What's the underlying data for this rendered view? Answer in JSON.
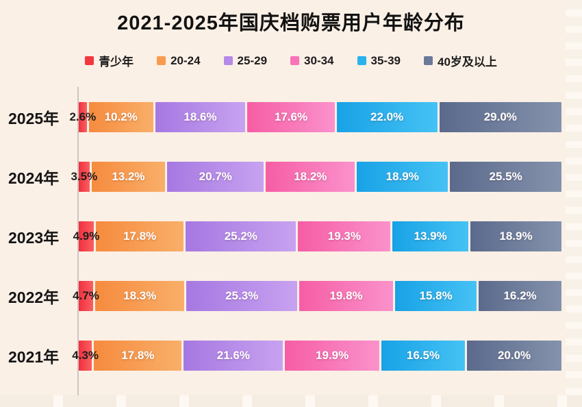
{
  "page": {
    "background_color": "#fbf0e6",
    "edge_strip_color": "#fdf8f1"
  },
  "chart_data": {
    "type": "bar",
    "variant": "horizontal-stacked",
    "title": "2021-2025年国庆档购票用户年龄分布",
    "unit": "%",
    "legend_position": "top",
    "value_labels": true,
    "axis": {
      "baseline": "left-vertical-line",
      "grid": false
    },
    "categories": [
      "2025年",
      "2024年",
      "2023年",
      "2022年",
      "2021年"
    ],
    "series": [
      {
        "name": "青少年",
        "legend_color": "#f2383f",
        "color_start": "#f0303e",
        "color_end": "#fb5f63",
        "label_style": "dark-overflow",
        "values": [
          2.6,
          3.5,
          4.9,
          4.7,
          4.3
        ]
      },
      {
        "name": "20-24",
        "legend_color": "#f89b50",
        "color_start": "#f68b3e",
        "color_end": "#f9af69",
        "values": [
          10.2,
          13.2,
          17.8,
          18.3,
          17.8
        ]
      },
      {
        "name": "25-29",
        "legend_color": "#b58ae8",
        "color_start": "#a678e2",
        "color_end": "#c7a2f0",
        "values": [
          18.6,
          20.7,
          25.2,
          25.3,
          21.6
        ]
      },
      {
        "name": "30-34",
        "legend_color": "#f973b9",
        "color_start": "#f65da4",
        "color_end": "#fa92cc",
        "values": [
          17.6,
          18.2,
          19.3,
          19.8,
          19.9
        ]
      },
      {
        "name": "35-39",
        "legend_color": "#29b3ee",
        "color_start": "#18a2e6",
        "color_end": "#45c2f4",
        "values": [
          22.0,
          18.9,
          13.9,
          15.8,
          16.5
        ]
      },
      {
        "name": "40岁及以上",
        "legend_color": "#6b7a99",
        "color_start": "#5b6a8c",
        "color_end": "#8492ac",
        "values": [
          29.0,
          25.5,
          18.9,
          16.2,
          20.0
        ]
      }
    ]
  }
}
